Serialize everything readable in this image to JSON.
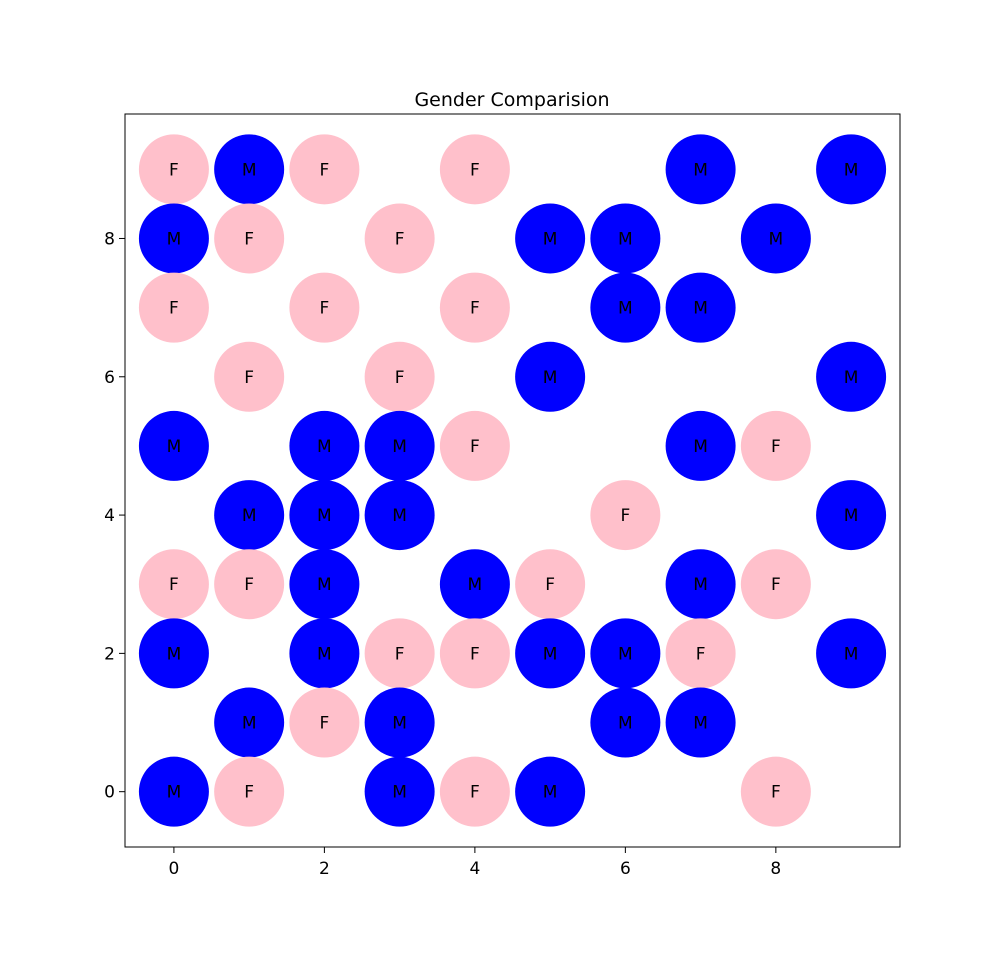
{
  "chart_data": {
    "type": "scatter",
    "title": "Gender Comparision",
    "xlabel": "",
    "ylabel": "",
    "xlim": [
      -0.65,
      9.65
    ],
    "ylim": [
      -0.8,
      9.8
    ],
    "xticks": [
      0,
      2,
      4,
      6,
      8
    ],
    "yticks": [
      0,
      2,
      4,
      6,
      8
    ],
    "grid": false,
    "colors": {
      "M": "#0000ff",
      "F": "#ffc0cb"
    },
    "points": [
      {
        "x": 0,
        "y": 9,
        "label": "F"
      },
      {
        "x": 1,
        "y": 9,
        "label": "M"
      },
      {
        "x": 2,
        "y": 9,
        "label": "F"
      },
      {
        "x": 4,
        "y": 9,
        "label": "F"
      },
      {
        "x": 7,
        "y": 9,
        "label": "M"
      },
      {
        "x": 9,
        "y": 9,
        "label": "M"
      },
      {
        "x": 0,
        "y": 8,
        "label": "M"
      },
      {
        "x": 1,
        "y": 8,
        "label": "F"
      },
      {
        "x": 3,
        "y": 8,
        "label": "F"
      },
      {
        "x": 5,
        "y": 8,
        "label": "M"
      },
      {
        "x": 6,
        "y": 8,
        "label": "M"
      },
      {
        "x": 8,
        "y": 8,
        "label": "M"
      },
      {
        "x": 0,
        "y": 7,
        "label": "F"
      },
      {
        "x": 2,
        "y": 7,
        "label": "F"
      },
      {
        "x": 4,
        "y": 7,
        "label": "F"
      },
      {
        "x": 6,
        "y": 7,
        "label": "M"
      },
      {
        "x": 7,
        "y": 7,
        "label": "M"
      },
      {
        "x": 1,
        "y": 6,
        "label": "F"
      },
      {
        "x": 3,
        "y": 6,
        "label": "F"
      },
      {
        "x": 5,
        "y": 6,
        "label": "M"
      },
      {
        "x": 9,
        "y": 6,
        "label": "M"
      },
      {
        "x": 0,
        "y": 5,
        "label": "M"
      },
      {
        "x": 2,
        "y": 5,
        "label": "M"
      },
      {
        "x": 3,
        "y": 5,
        "label": "M"
      },
      {
        "x": 4,
        "y": 5,
        "label": "F"
      },
      {
        "x": 7,
        "y": 5,
        "label": "M"
      },
      {
        "x": 8,
        "y": 5,
        "label": "F"
      },
      {
        "x": 1,
        "y": 4,
        "label": "M"
      },
      {
        "x": 2,
        "y": 4,
        "label": "M"
      },
      {
        "x": 3,
        "y": 4,
        "label": "M"
      },
      {
        "x": 6,
        "y": 4,
        "label": "F"
      },
      {
        "x": 9,
        "y": 4,
        "label": "M"
      },
      {
        "x": 0,
        "y": 3,
        "label": "F"
      },
      {
        "x": 1,
        "y": 3,
        "label": "F"
      },
      {
        "x": 2,
        "y": 3,
        "label": "M"
      },
      {
        "x": 4,
        "y": 3,
        "label": "M"
      },
      {
        "x": 5,
        "y": 3,
        "label": "F"
      },
      {
        "x": 7,
        "y": 3,
        "label": "M"
      },
      {
        "x": 8,
        "y": 3,
        "label": "F"
      },
      {
        "x": 0,
        "y": 2,
        "label": "M"
      },
      {
        "x": 2,
        "y": 2,
        "label": "M"
      },
      {
        "x": 3,
        "y": 2,
        "label": "F"
      },
      {
        "x": 4,
        "y": 2,
        "label": "F"
      },
      {
        "x": 5,
        "y": 2,
        "label": "M"
      },
      {
        "x": 6,
        "y": 2,
        "label": "M"
      },
      {
        "x": 7,
        "y": 2,
        "label": "F"
      },
      {
        "x": 9,
        "y": 2,
        "label": "M"
      },
      {
        "x": 1,
        "y": 1,
        "label": "M"
      },
      {
        "x": 2,
        "y": 1,
        "label": "F"
      },
      {
        "x": 3,
        "y": 1,
        "label": "M"
      },
      {
        "x": 6,
        "y": 1,
        "label": "M"
      },
      {
        "x": 7,
        "y": 1,
        "label": "M"
      },
      {
        "x": 0,
        "y": 0,
        "label": "M"
      },
      {
        "x": 1,
        "y": 0,
        "label": "F"
      },
      {
        "x": 3,
        "y": 0,
        "label": "M"
      },
      {
        "x": 4,
        "y": 0,
        "label": "F"
      },
      {
        "x": 5,
        "y": 0,
        "label": "M"
      },
      {
        "x": 8,
        "y": 0,
        "label": "F"
      }
    ]
  }
}
